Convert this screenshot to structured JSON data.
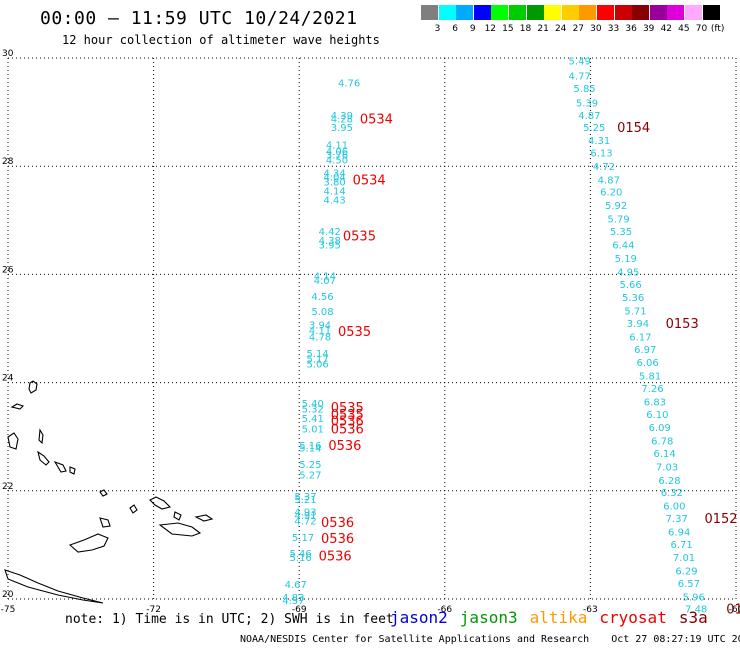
{
  "header": {
    "title": "00:00 – 11:59 UTC 10/24/2021",
    "subtitle": "12 hour collection of altimeter wave heights"
  },
  "color_scale": {
    "unit": "(ft)",
    "entries": [
      {
        "label": "3",
        "color": "#7f7f7f"
      },
      {
        "label": "6",
        "color": "#00ffff"
      },
      {
        "label": "9",
        "color": "#00aaff"
      },
      {
        "label": "12",
        "color": "#0000ff"
      },
      {
        "label": "15",
        "color": "#00ff00"
      },
      {
        "label": "18",
        "color": "#00cc00"
      },
      {
        "label": "21",
        "color": "#009900"
      },
      {
        "label": "24",
        "color": "#ffff00"
      },
      {
        "label": "27",
        "color": "#ffcc00"
      },
      {
        "label": "30",
        "color": "#ff9900"
      },
      {
        "label": "33",
        "color": "#ff0000"
      },
      {
        "label": "36",
        "color": "#cc0000"
      },
      {
        "label": "39",
        "color": "#880000"
      },
      {
        "label": "42",
        "color": "#990099"
      },
      {
        "label": "45",
        "color": "#dd00dd"
      },
      {
        "label": "70",
        "color": "#ffaaff"
      },
      {
        "label": "",
        "color": "#000000"
      }
    ]
  },
  "axes": {
    "lon_range": [
      -75,
      -60
    ],
    "lat_range": [
      20,
      30
    ],
    "x_ticks": [
      "-75",
      "-72",
      "-69",
      "-66",
      "-63",
      "-60"
    ],
    "y_ticks": [
      "30",
      "28",
      "26",
      "24",
      "22",
      "20"
    ]
  },
  "chart_data": {
    "type": "scatter",
    "colors": {
      "wave": "#22c8dd",
      "red_time": "#ee0000",
      "dark_time": "#880000"
    },
    "tracks": [
      {
        "points": [
          {
            "lon": -68.2,
            "lat": 29.55,
            "v": "4.76"
          },
          {
            "lon": -68.35,
            "lat": 28.95,
            "v": "4.39"
          },
          {
            "lon": -68.35,
            "lat": 28.88,
            "v": "4.28"
          },
          {
            "lon": -68.35,
            "lat": 28.72,
            "v": "3.95"
          },
          {
            "lon": -68.45,
            "lat": 28.4,
            "v": "4.11"
          },
          {
            "lon": -68.45,
            "lat": 28.28,
            "v": "4.06"
          },
          {
            "lon": -68.45,
            "lat": 28.22,
            "v": "3.76"
          },
          {
            "lon": -68.45,
            "lat": 28.12,
            "v": "4.50"
          },
          {
            "lon": -68.5,
            "lat": 27.88,
            "v": "4.34"
          },
          {
            "lon": -68.5,
            "lat": 27.81,
            "v": "4.04"
          },
          {
            "lon": -68.5,
            "lat": 27.72,
            "v": "3.80"
          },
          {
            "lon": -68.5,
            "lat": 27.55,
            "v": "4.14"
          },
          {
            "lon": -68.5,
            "lat": 27.38,
            "v": "4.43"
          },
          {
            "lon": -68.6,
            "lat": 26.8,
            "v": "4.42"
          },
          {
            "lon": -68.6,
            "lat": 26.64,
            "v": "4.38"
          },
          {
            "lon": -68.6,
            "lat": 26.55,
            "v": "3.95"
          },
          {
            "lon": -68.7,
            "lat": 25.98,
            "v": "4.14"
          },
          {
            "lon": -68.7,
            "lat": 25.9,
            "v": "4.07"
          },
          {
            "lon": -68.75,
            "lat": 25.6,
            "v": "4.56"
          },
          {
            "lon": -68.75,
            "lat": 25.32,
            "v": "5.08"
          },
          {
            "lon": -68.8,
            "lat": 25.07,
            "v": "3.94"
          },
          {
            "lon": -68.8,
            "lat": 24.97,
            "v": "4.11"
          },
          {
            "lon": -68.8,
            "lat": 24.85,
            "v": "4.78"
          },
          {
            "lon": -68.85,
            "lat": 24.55,
            "v": "5.14"
          },
          {
            "lon": -68.85,
            "lat": 24.45,
            "v": "5.17"
          },
          {
            "lon": -68.85,
            "lat": 24.35,
            "v": "5.06"
          },
          {
            "lon": -68.95,
            "lat": 23.62,
            "v": "5.40"
          },
          {
            "lon": -68.95,
            "lat": 23.52,
            "v": "5.32"
          },
          {
            "lon": -68.95,
            "lat": 23.35,
            "v": "5.41"
          },
          {
            "lon": -68.95,
            "lat": 23.15,
            "v": "5.01"
          },
          {
            "lon": -69.0,
            "lat": 22.85,
            "v": "5.16"
          },
          {
            "lon": -69.0,
            "lat": 22.8,
            "v": "5.14"
          },
          {
            "lon": -69.0,
            "lat": 22.5,
            "v": "5.25"
          },
          {
            "lon": -69.0,
            "lat": 22.3,
            "v": "5.27"
          },
          {
            "lon": -69.1,
            "lat": 21.9,
            "v": "5.37"
          },
          {
            "lon": -69.1,
            "lat": 21.85,
            "v": "5.21"
          },
          {
            "lon": -69.1,
            "lat": 21.62,
            "v": "4.93"
          },
          {
            "lon": -69.1,
            "lat": 21.55,
            "v": "4.91"
          },
          {
            "lon": -69.1,
            "lat": 21.45,
            "v": "4.72"
          },
          {
            "lon": -69.15,
            "lat": 21.15,
            "v": "5.17"
          },
          {
            "lon": -69.2,
            "lat": 20.85,
            "v": "5.46"
          },
          {
            "lon": -69.2,
            "lat": 20.78,
            "v": "5.16"
          },
          {
            "lon": -69.3,
            "lat": 20.28,
            "v": "4.67"
          },
          {
            "lon": -69.35,
            "lat": 20.04,
            "v": "4.83"
          },
          {
            "lon": -69.35,
            "lat": 19.98,
            "v": "4.57"
          }
        ],
        "times": [
          {
            "lon": -67.75,
            "lat": 28.88,
            "t": "0534"
          },
          {
            "lon": -67.9,
            "lat": 27.75,
            "t": "0534"
          },
          {
            "lon": -68.1,
            "lat": 26.72,
            "t": "0535"
          },
          {
            "lon": -68.2,
            "lat": 24.95,
            "t": "0535"
          },
          {
            "lon": -68.35,
            "lat": 23.55,
            "t": "0535"
          },
          {
            "lon": -68.35,
            "lat": 23.42,
            "t": "0535"
          },
          {
            "lon": -68.35,
            "lat": 23.3,
            "t": "0536"
          },
          {
            "lon": -68.35,
            "lat": 23.15,
            "t": "0536"
          },
          {
            "lon": -68.4,
            "lat": 22.85,
            "t": "0536"
          },
          {
            "lon": -68.55,
            "lat": 21.42,
            "t": "0536"
          },
          {
            "lon": -68.55,
            "lat": 21.13,
            "t": "0536"
          },
          {
            "lon": -68.6,
            "lat": 20.8,
            "t": "0536"
          }
        ],
        "time_color": "red_time"
      },
      {
        "points": [
          {
            "lon": -63.45,
            "lat": 29.95,
            "v": "5.49"
          },
          {
            "lon": -63.45,
            "lat": 29.68,
            "v": "4.77"
          },
          {
            "lon": -63.35,
            "lat": 29.45,
            "v": "5.85"
          },
          {
            "lon": -63.3,
            "lat": 29.18,
            "v": "5.39"
          },
          {
            "lon": -63.25,
            "lat": 28.95,
            "v": "4.87"
          },
          {
            "lon": -63.15,
            "lat": 28.72,
            "v": "5.25"
          },
          {
            "lon": -63.05,
            "lat": 28.48,
            "v": "4.31"
          },
          {
            "lon": -63.0,
            "lat": 28.25,
            "v": "6.13"
          },
          {
            "lon": -62.95,
            "lat": 28.0,
            "v": "4.72"
          },
          {
            "lon": -62.85,
            "lat": 27.75,
            "v": "4.87"
          },
          {
            "lon": -62.8,
            "lat": 27.53,
            "v": "6.20"
          },
          {
            "lon": -62.7,
            "lat": 27.28,
            "v": "5.92"
          },
          {
            "lon": -62.65,
            "lat": 27.03,
            "v": "5.79"
          },
          {
            "lon": -62.6,
            "lat": 26.8,
            "v": "5.35"
          },
          {
            "lon": -62.55,
            "lat": 26.55,
            "v": "6.44"
          },
          {
            "lon": -62.5,
            "lat": 26.3,
            "v": "5.19"
          },
          {
            "lon": -62.45,
            "lat": 26.05,
            "v": "4.95"
          },
          {
            "lon": -62.4,
            "lat": 25.82,
            "v": "5.66"
          },
          {
            "lon": -62.35,
            "lat": 25.58,
            "v": "5.36"
          },
          {
            "lon": -62.3,
            "lat": 25.33,
            "v": "5.71"
          },
          {
            "lon": -62.25,
            "lat": 25.1,
            "v": "3.94"
          },
          {
            "lon": -62.2,
            "lat": 24.85,
            "v": "6.17"
          },
          {
            "lon": -62.1,
            "lat": 24.62,
            "v": "6.97"
          },
          {
            "lon": -62.05,
            "lat": 24.38,
            "v": "6.06"
          },
          {
            "lon": -62.0,
            "lat": 24.13,
            "v": "5.81"
          },
          {
            "lon": -61.95,
            "lat": 23.9,
            "v": "7.26"
          },
          {
            "lon": -61.9,
            "lat": 23.65,
            "v": "6.83"
          },
          {
            "lon": -61.85,
            "lat": 23.42,
            "v": "6.10"
          },
          {
            "lon": -61.8,
            "lat": 23.18,
            "v": "6.09"
          },
          {
            "lon": -61.75,
            "lat": 22.93,
            "v": "6.78"
          },
          {
            "lon": -61.7,
            "lat": 22.7,
            "v": "6.14"
          },
          {
            "lon": -61.65,
            "lat": 22.45,
            "v": "7.03"
          },
          {
            "lon": -61.6,
            "lat": 22.2,
            "v": "6.28"
          },
          {
            "lon": -61.55,
            "lat": 21.98,
            "v": "6.32"
          },
          {
            "lon": -61.5,
            "lat": 21.73,
            "v": "6.00"
          },
          {
            "lon": -61.45,
            "lat": 21.5,
            "v": "7.37"
          },
          {
            "lon": -61.4,
            "lat": 21.25,
            "v": "6.94"
          },
          {
            "lon": -61.35,
            "lat": 21.02,
            "v": "6.71"
          },
          {
            "lon": -61.3,
            "lat": 20.78,
            "v": "7.01"
          },
          {
            "lon": -61.25,
            "lat": 20.53,
            "v": "6.29"
          },
          {
            "lon": -61.2,
            "lat": 20.3,
            "v": "6.57"
          },
          {
            "lon": -61.1,
            "lat": 20.05,
            "v": "5.96"
          },
          {
            "lon": -61.05,
            "lat": 19.82,
            "v": "7.48"
          }
        ],
        "times": [
          {
            "lon": -62.45,
            "lat": 28.72,
            "t": "0154"
          },
          {
            "lon": -61.45,
            "lat": 25.1,
            "t": "0153"
          },
          {
            "lon": -60.65,
            "lat": 21.5,
            "t": "0152"
          },
          {
            "lon": -60.2,
            "lat": 19.82,
            "t": "01"
          }
        ],
        "time_color": "dark_time"
      }
    ]
  },
  "footer": {
    "note": "note: 1) Time is in UTC; 2) SWH is in feet",
    "missions": [
      {
        "name": "jason2",
        "color": "#0000dd"
      },
      {
        "name": "jason3",
        "color": "#009900"
      },
      {
        "name": "altika",
        "color": "#ff9900"
      },
      {
        "name": "cryosat",
        "color": "#ee0000"
      },
      {
        "name": "s3a",
        "color": "#880000"
      }
    ],
    "credit": "NOAA/NESDIS Center for Satellite Applications and Research",
    "timestamp": "Oct 27 08:27:19 UTC 2021"
  }
}
